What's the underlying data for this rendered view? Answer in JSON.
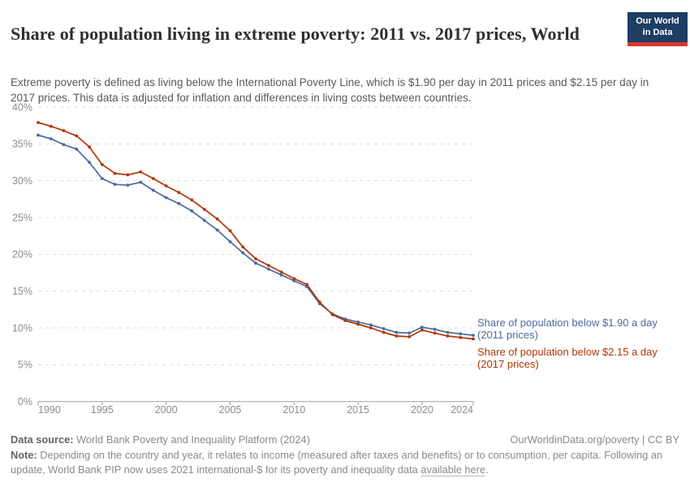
{
  "header": {
    "title": "Share of population living in extreme poverty: 2011 vs. 2017 prices, World",
    "logo": {
      "line1": "Our World",
      "line2": "in Data",
      "bg_color": "#1d3d63",
      "bar_color": "#d7352e"
    }
  },
  "subtitle": "Extreme poverty is defined as living below the International Poverty Line, which is $1.90 per day in 2011 prices and $2.15 per day in 2017 prices. This data is adjusted for inflation and differences in living costs between countries.",
  "chart_data": {
    "type": "line",
    "title": "Share of population living in extreme poverty: 2011 vs. 2017 prices, World",
    "x": [
      1990,
      1991,
      1992,
      1993,
      1994,
      1995,
      1996,
      1997,
      1998,
      1999,
      2000,
      2001,
      2002,
      2003,
      2004,
      2005,
      2006,
      2007,
      2008,
      2009,
      2010,
      2011,
      2012,
      2013,
      2014,
      2015,
      2016,
      2017,
      2018,
      2019,
      2020,
      2021,
      2022,
      2023,
      2024
    ],
    "series": [
      {
        "name": "Share of population below $1.90 a day (2011 prices)",
        "label_line1": "Share of population below $1.90 a day",
        "label_line2": "(2011 prices)",
        "color": "#4C6A9C",
        "values": [
          36.2,
          35.7,
          34.9,
          34.3,
          32.5,
          30.3,
          29.5,
          29.4,
          29.8,
          28.7,
          27.7,
          26.9,
          25.9,
          24.6,
          23.3,
          21.7,
          20.2,
          18.8,
          18.0,
          17.2,
          16.4,
          15.6,
          13.3,
          11.9,
          11.2,
          10.8,
          10.4,
          9.9,
          9.4,
          9.3,
          10.1,
          9.8,
          9.4,
          9.2,
          9.0
        ]
      },
      {
        "name": "Share of population below $2.15 a day (2017 prices)",
        "label_line1": "Share of population below $2.15 a day",
        "label_line2": "(2017 prices)",
        "color": "#B13507",
        "values": [
          37.9,
          37.4,
          36.8,
          36.1,
          34.6,
          32.2,
          31.0,
          30.8,
          31.2,
          30.3,
          29.3,
          28.4,
          27.4,
          26.1,
          24.8,
          23.2,
          21.0,
          19.4,
          18.5,
          17.6,
          16.7,
          15.9,
          13.5,
          11.8,
          11.0,
          10.5,
          10.0,
          9.4,
          8.9,
          8.8,
          9.7,
          9.3,
          8.9,
          8.7,
          8.5
        ]
      }
    ],
    "xlabel": "",
    "ylabel": "",
    "xlim": [
      1990,
      2024
    ],
    "ylim": [
      0,
      40
    ],
    "x_ticks": [
      1990,
      1995,
      2000,
      2005,
      2010,
      2015,
      2020,
      2024
    ],
    "y_ticks": [
      0,
      5,
      10,
      15,
      20,
      25,
      30,
      35,
      40
    ],
    "y_tick_suffix": "%",
    "grid": "horizontal dashed",
    "legend_position": "right of line ends",
    "grid_color": "#dcdcdc",
    "axis_color": "#a0a0a0",
    "tick_label_color": "#8c8c8c"
  },
  "footer": {
    "datasource_label": "Data source:",
    "datasource": " World Bank Poverty and Inequality Platform (2024)",
    "attribution": "OurWorldinData.org/poverty | CC BY",
    "note_label": "Note:",
    "note_before_link": " Depending on the country and year, it relates to income (measured after taxes and benefits) or to consumption, per capita. Following an update, World Bank PIP now uses 2021 international-$ for its poverty and inequality data ",
    "note_link": "available here",
    "note_after_link": "."
  }
}
